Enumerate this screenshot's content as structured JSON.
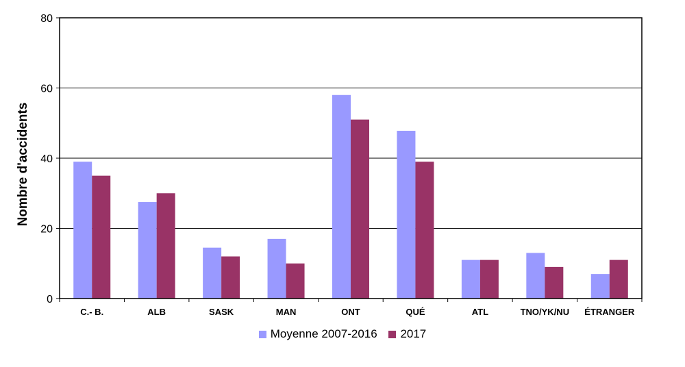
{
  "chart_data": {
    "type": "bar",
    "title": "",
    "xlabel": "",
    "ylabel": "Nombre d'accidents",
    "ylim": [
      0,
      80
    ],
    "yticks": [
      0,
      20,
      40,
      60,
      80
    ],
    "grid": true,
    "legend_position": "bottom",
    "categories": [
      "C.- B.",
      "ALB",
      "SASK",
      "MAN",
      "ONT",
      "QUÉ",
      "ATL",
      "TNO/YK/NU",
      "ÉTRANGER"
    ],
    "series": [
      {
        "name": "Moyenne 2007-2016",
        "color": "#9999ff",
        "values": [
          39,
          27.5,
          14.5,
          17,
          58,
          47.8,
          11,
          13,
          7
        ]
      },
      {
        "name": "2017",
        "color": "#993366",
        "values": [
          35,
          30,
          12,
          10,
          51,
          39,
          11,
          9,
          11
        ]
      }
    ]
  }
}
